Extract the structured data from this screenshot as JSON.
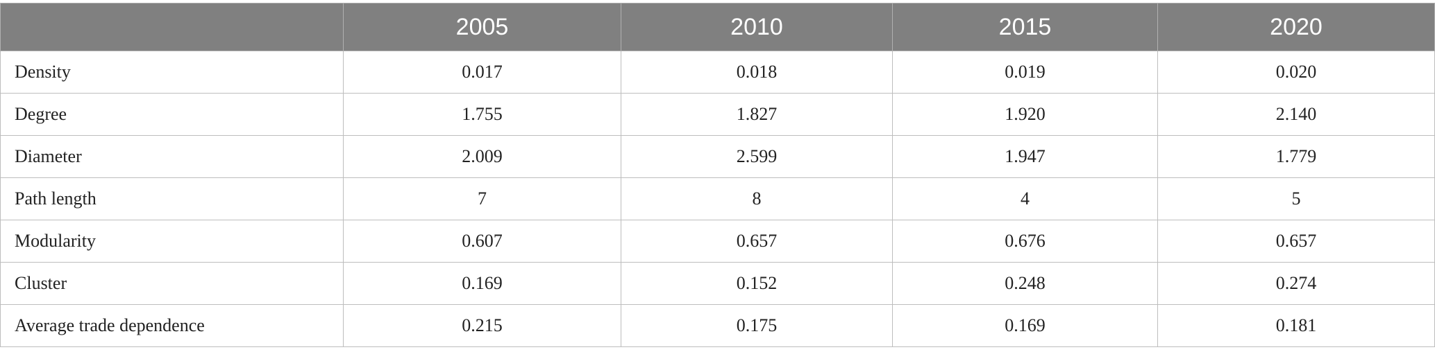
{
  "table": {
    "columns": [
      "2005",
      "2010",
      "2015",
      "2020"
    ],
    "rows": [
      [
        "Density",
        "0.017",
        "0.018",
        "0.019",
        "0.020"
      ],
      [
        "Degree",
        "1.755",
        "1.827",
        "1.920",
        "2.140"
      ],
      [
        "Diameter",
        "2.009",
        "2.599",
        "1.947",
        "1.779"
      ],
      [
        "Path length",
        "7",
        "8",
        "4",
        "5"
      ],
      [
        "Modularity",
        "0.607",
        "0.657",
        "0.676",
        "0.657"
      ],
      [
        "Cluster",
        "0.169",
        "0.152",
        "0.248",
        "0.274"
      ],
      [
        "Average trade dependence",
        "0.215",
        "0.175",
        "0.169",
        "0.181"
      ]
    ]
  }
}
